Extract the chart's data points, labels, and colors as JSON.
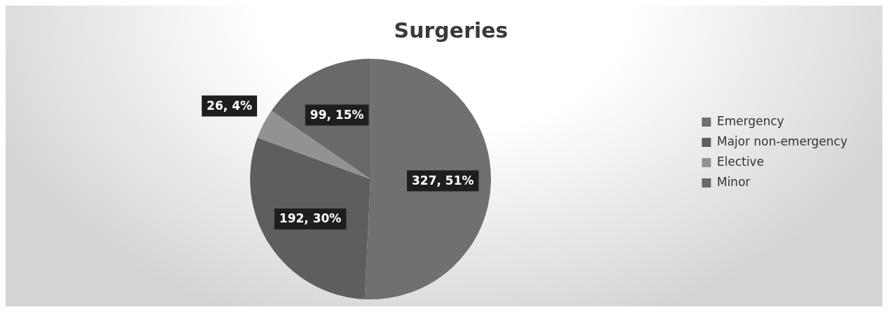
{
  "chart_data": {
    "type": "pie",
    "title": "Surgeries",
    "categories": [
      "Emergency",
      "Major non-emergency",
      "Elective",
      "Minor"
    ],
    "values": [
      327,
      192,
      26,
      99
    ],
    "colors": [
      "#707070",
      "#5e5e5e",
      "#929292",
      "#696969"
    ],
    "value_labels": [
      "327, 51%",
      "192, 30%",
      "26, 4%",
      "99, 15%"
    ],
    "legend": "right"
  }
}
